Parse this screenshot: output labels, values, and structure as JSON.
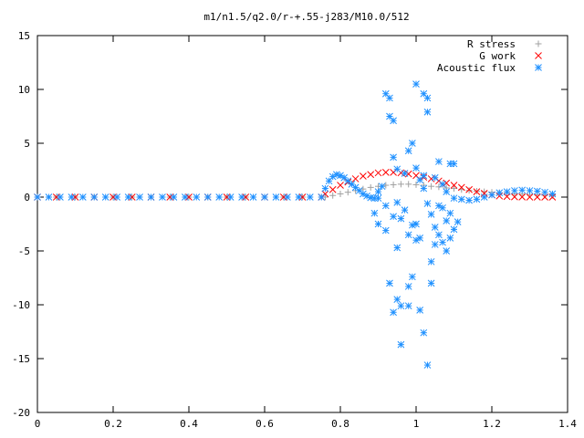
{
  "chart_data": {
    "type": "scatter",
    "title": "m1/n1.5/q2.0/r-+.55-j283/M10.0/512",
    "xlabel": "",
    "ylabel": "",
    "xlim": [
      0,
      1.4
    ],
    "ylim": [
      -20,
      15
    ],
    "x_ticks": [
      "0",
      "0.2",
      "0.4",
      "0.6",
      "0.8",
      "1",
      "1.2",
      "1.4"
    ],
    "y_ticks": [
      "15",
      "10",
      "5",
      "0",
      "-5",
      "-10",
      "-15",
      "-20"
    ],
    "grid": false,
    "legend_position": "top-right",
    "series": [
      {
        "name": "R stress",
        "marker": "plus",
        "color": "#a0a0a0",
        "points": [
          [
            0,
            0
          ],
          [
            0.05,
            0
          ],
          [
            0.1,
            0
          ],
          [
            0.15,
            0
          ],
          [
            0.2,
            0
          ],
          [
            0.25,
            0
          ],
          [
            0.3,
            0
          ],
          [
            0.35,
            0
          ],
          [
            0.4,
            0
          ],
          [
            0.45,
            0
          ],
          [
            0.5,
            0
          ],
          [
            0.55,
            0
          ],
          [
            0.6,
            0
          ],
          [
            0.65,
            0
          ],
          [
            0.7,
            0
          ],
          [
            0.75,
            0
          ],
          [
            0.76,
            0.0
          ],
          [
            0.78,
            0.15
          ],
          [
            0.8,
            0.3
          ],
          [
            0.82,
            0.45
          ],
          [
            0.84,
            0.6
          ],
          [
            0.86,
            0.75
          ],
          [
            0.88,
            0.9
          ],
          [
            0.9,
            1.0
          ],
          [
            0.92,
            1.1
          ],
          [
            0.94,
            1.15
          ],
          [
            0.96,
            1.2
          ],
          [
            0.98,
            1.2
          ],
          [
            1.0,
            1.15
          ],
          [
            1.02,
            1.1
          ],
          [
            1.04,
            1.0
          ],
          [
            1.06,
            0.95
          ],
          [
            1.08,
            0.85
          ],
          [
            1.1,
            0.8
          ],
          [
            1.12,
            0.7
          ],
          [
            1.14,
            0.62
          ],
          [
            1.16,
            0.55
          ],
          [
            1.18,
            0.5
          ],
          [
            1.2,
            0.45
          ],
          [
            1.22,
            0.4
          ],
          [
            1.24,
            0.35
          ],
          [
            1.26,
            0.3
          ],
          [
            1.28,
            0.28
          ],
          [
            1.3,
            0.25
          ],
          [
            1.32,
            0.22
          ],
          [
            1.34,
            0.18
          ],
          [
            1.36,
            0.15
          ]
        ]
      },
      {
        "name": "G work",
        "marker": "cross",
        "color": "#ff0000",
        "points": [
          [
            0,
            0
          ],
          [
            0.05,
            0
          ],
          [
            0.1,
            0
          ],
          [
            0.15,
            0
          ],
          [
            0.2,
            0
          ],
          [
            0.25,
            0
          ],
          [
            0.3,
            0
          ],
          [
            0.35,
            0
          ],
          [
            0.4,
            0
          ],
          [
            0.45,
            0
          ],
          [
            0.5,
            0
          ],
          [
            0.55,
            0
          ],
          [
            0.6,
            0
          ],
          [
            0.65,
            0
          ],
          [
            0.7,
            0
          ],
          [
            0.75,
            0
          ],
          [
            0.76,
            0.3
          ],
          [
            0.78,
            0.7
          ],
          [
            0.8,
            1.1
          ],
          [
            0.82,
            1.4
          ],
          [
            0.84,
            1.7
          ],
          [
            0.86,
            1.95
          ],
          [
            0.88,
            2.1
          ],
          [
            0.9,
            2.25
          ],
          [
            0.92,
            2.3
          ],
          [
            0.94,
            2.3
          ],
          [
            0.96,
            2.25
          ],
          [
            0.98,
            2.15
          ],
          [
            1.0,
            2.0
          ],
          [
            1.02,
            1.85
          ],
          [
            1.04,
            1.7
          ],
          [
            1.06,
            1.5
          ],
          [
            1.08,
            1.3
          ],
          [
            1.1,
            1.1
          ],
          [
            1.12,
            0.9
          ],
          [
            1.14,
            0.7
          ],
          [
            1.16,
            0.5
          ],
          [
            1.18,
            0.35
          ],
          [
            1.2,
            0.2
          ],
          [
            1.22,
            0.1
          ],
          [
            1.24,
            0.05
          ],
          [
            1.26,
            0.02
          ],
          [
            1.28,
            0.01
          ],
          [
            1.3,
            0.0
          ],
          [
            1.32,
            0.0
          ],
          [
            1.34,
            0.0
          ],
          [
            1.36,
            0.0
          ]
        ]
      },
      {
        "name": "Acoustic flux",
        "marker": "star",
        "color": "#1e90ff",
        "points": [
          [
            0,
            0
          ],
          [
            0.03,
            0
          ],
          [
            0.06,
            0
          ],
          [
            0.09,
            0
          ],
          [
            0.12,
            0
          ],
          [
            0.15,
            0
          ],
          [
            0.18,
            0
          ],
          [
            0.21,
            0
          ],
          [
            0.24,
            0
          ],
          [
            0.27,
            0
          ],
          [
            0.3,
            0
          ],
          [
            0.33,
            0
          ],
          [
            0.36,
            0
          ],
          [
            0.39,
            0
          ],
          [
            0.42,
            0
          ],
          [
            0.45,
            0
          ],
          [
            0.48,
            0
          ],
          [
            0.51,
            0
          ],
          [
            0.54,
            0
          ],
          [
            0.57,
            0
          ],
          [
            0.6,
            0
          ],
          [
            0.63,
            0
          ],
          [
            0.66,
            0
          ],
          [
            0.69,
            0
          ],
          [
            0.72,
            0
          ],
          [
            0.75,
            0
          ],
          [
            0.76,
            0.8
          ],
          [
            0.77,
            1.5
          ],
          [
            0.78,
            1.9
          ],
          [
            0.79,
            2.1
          ],
          [
            0.8,
            2.0
          ],
          [
            0.81,
            1.8
          ],
          [
            0.82,
            1.5
          ],
          [
            0.83,
            1.2
          ],
          [
            0.84,
            0.9
          ],
          [
            0.85,
            0.6
          ],
          [
            0.86,
            0.3
          ],
          [
            0.87,
            0.1
          ],
          [
            0.88,
            -0.05
          ],
          [
            0.89,
            -0.1
          ],
          [
            0.9,
            -0.1
          ],
          [
            1.1,
            -0.1
          ],
          [
            1.12,
            -0.2
          ],
          [
            1.14,
            -0.3
          ],
          [
            1.16,
            -0.2
          ],
          [
            1.18,
            0.0
          ],
          [
            1.2,
            0.2
          ],
          [
            1.22,
            0.4
          ],
          [
            1.24,
            0.5
          ],
          [
            1.26,
            0.6
          ],
          [
            1.28,
            0.65
          ],
          [
            1.3,
            0.6
          ],
          [
            1.32,
            0.55
          ],
          [
            1.34,
            0.45
          ],
          [
            1.36,
            0.3
          ],
          [
            0.89,
            -1.5
          ],
          [
            0.9,
            -2.5
          ],
          [
            0.9,
            0.5
          ],
          [
            0.92,
            9.6
          ],
          [
            0.93,
            9.2
          ],
          [
            0.93,
            7.5
          ],
          [
            0.94,
            7.1
          ],
          [
            0.94,
            3.7
          ],
          [
            0.95,
            2.6
          ],
          [
            0.95,
            -4.7
          ],
          [
            0.92,
            -3.1
          ],
          [
            0.93,
            -8.0
          ],
          [
            0.94,
            -10.7
          ],
          [
            0.95,
            -9.5
          ],
          [
            0.96,
            -10.1
          ],
          [
            0.96,
            -13.7
          ],
          [
            0.98,
            -8.3
          ],
          [
            0.98,
            -10.1
          ],
          [
            0.99,
            -7.4
          ],
          [
            1.0,
            -4.0
          ],
          [
            1.0,
            -2.5
          ],
          [
            1.01,
            -3.8
          ],
          [
            1.01,
            -10.5
          ],
          [
            1.02,
            -12.6
          ],
          [
            1.0,
            10.5
          ],
          [
            1.02,
            9.6
          ],
          [
            1.03,
            9.2
          ],
          [
            1.03,
            7.9
          ],
          [
            1.04,
            -8.0
          ],
          [
            1.03,
            -15.6
          ],
          [
            1.04,
            -6.0
          ],
          [
            1.05,
            -4.4
          ],
          [
            1.06,
            -3.5
          ],
          [
            1.07,
            -4.2
          ],
          [
            1.08,
            -5.0
          ],
          [
            1.09,
            -3.8
          ],
          [
            1.1,
            -3.0
          ],
          [
            1.06,
            3.3
          ],
          [
            1.07,
            1.2
          ],
          [
            1.08,
            0.5
          ],
          [
            1.09,
            3.1
          ],
          [
            1.1,
            3.1
          ],
          [
            0.98,
            4.3
          ],
          [
            0.99,
            5.0
          ],
          [
            0.97,
            2.2
          ],
          [
            1.0,
            2.7
          ],
          [
            1.01,
            1.6
          ],
          [
            1.02,
            0.8
          ],
          [
            1.05,
            1.8
          ],
          [
            1.07,
            -1.0
          ],
          [
            1.08,
            -2.2
          ],
          [
            1.06,
            -0.8
          ],
          [
            1.09,
            -1.5
          ],
          [
            1.11,
            -2.3
          ],
          [
            0.97,
            -1.2
          ],
          [
            0.96,
            -2.0
          ],
          [
            0.98,
            -3.5
          ],
          [
            0.99,
            -2.6
          ],
          [
            0.95,
            -0.5
          ],
          [
            0.94,
            -1.8
          ],
          [
            1.04,
            -1.6
          ],
          [
            1.05,
            -2.8
          ],
          [
            1.03,
            -0.6
          ],
          [
            1.02,
            2.0
          ],
          [
            0.91,
            1.0
          ],
          [
            0.92,
            -0.8
          ]
        ]
      }
    ]
  }
}
